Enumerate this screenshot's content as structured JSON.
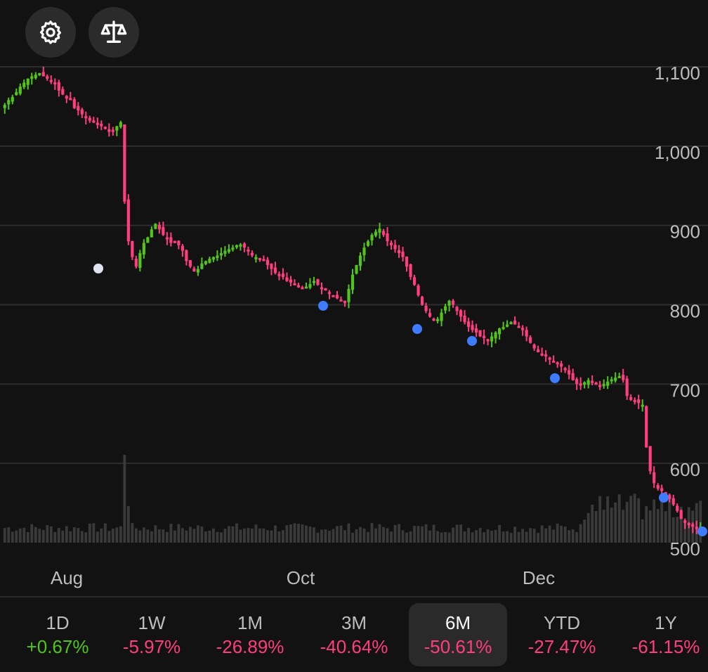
{
  "toolbar": {
    "settings_icon": "gear-icon",
    "compare_icon": "scale-icon"
  },
  "colors": {
    "background": "#121212",
    "up": "#52c41a",
    "down": "#ff3d7f",
    "marker_blue": "#3d7bff",
    "marker_white": "#dfe3f0",
    "volume": "#3a3a3a",
    "grid": "#2e2e2e"
  },
  "chart_data": {
    "type": "candlestick",
    "y_axis": {
      "ticks": [
        "1,100",
        "1,000",
        "900",
        "800",
        "700",
        "600",
        "500"
      ],
      "tick_values": [
        1100,
        1000,
        900,
        800,
        700,
        600,
        500
      ],
      "range": [
        500,
        1100
      ],
      "position": "right"
    },
    "x_axis": {
      "labels": [
        "Aug",
        "Oct",
        "Dec"
      ]
    },
    "grid": true,
    "close_series": [
      1052,
      1058,
      1062,
      1068,
      1075,
      1080,
      1085,
      1088,
      1090,
      1092,
      1088,
      1085,
      1082,
      1078,
      1070,
      1065,
      1060,
      1060,
      1048,
      1045,
      1040,
      1035,
      1032,
      1030,
      1028,
      1025,
      1022,
      1018,
      1020,
      1025,
      1030,
      930,
      880,
      860,
      848,
      865,
      878,
      885,
      895,
      902,
      895,
      888,
      883,
      878,
      880,
      875,
      868,
      855,
      848,
      842,
      845,
      852,
      855,
      858,
      860,
      862,
      865,
      868,
      870,
      872,
      875,
      876,
      872,
      868,
      862,
      860,
      858,
      855,
      850,
      845,
      840,
      838,
      835,
      830,
      828,
      825,
      822,
      820,
      823,
      826,
      830,
      825,
      820,
      818,
      815,
      812,
      808,
      805,
      802,
      820,
      838,
      850,
      862,
      872,
      880,
      888,
      892,
      896,
      888,
      880,
      875,
      870,
      865,
      860,
      848,
      835,
      825,
      812,
      800,
      792,
      785,
      780,
      782,
      790,
      798,
      805,
      800,
      792,
      785,
      778,
      772,
      768,
      765,
      760,
      758,
      755,
      760,
      765,
      770,
      772,
      775,
      778,
      775,
      772,
      768,
      760,
      752,
      745,
      740,
      738,
      735,
      732,
      728,
      725,
      722,
      718,
      712,
      705,
      700,
      698,
      702,
      705,
      703,
      700,
      698,
      700,
      703,
      706,
      708,
      710,
      705,
      685,
      680,
      678,
      676,
      674,
      620,
      590,
      575,
      568,
      565,
      560,
      555,
      548,
      540,
      530,
      525,
      522,
      520,
      518,
      520
    ]
  },
  "time_ranges": [
    {
      "label": "1D",
      "change": "+0.67%",
      "direction": "up",
      "selected": false
    },
    {
      "label": "1W",
      "change": "-5.97%",
      "direction": "down",
      "selected": false
    },
    {
      "label": "1M",
      "change": "-26.89%",
      "direction": "down",
      "selected": false
    },
    {
      "label": "3M",
      "change": "-40.64%",
      "direction": "down",
      "selected": false
    },
    {
      "label": "6M",
      "change": "-50.61%",
      "direction": "down",
      "selected": true
    },
    {
      "label": "YTD",
      "change": "-27.47%",
      "direction": "down",
      "selected": false
    },
    {
      "label": "1Y",
      "change": "-61.15%",
      "direction": "down",
      "selected": false
    }
  ]
}
